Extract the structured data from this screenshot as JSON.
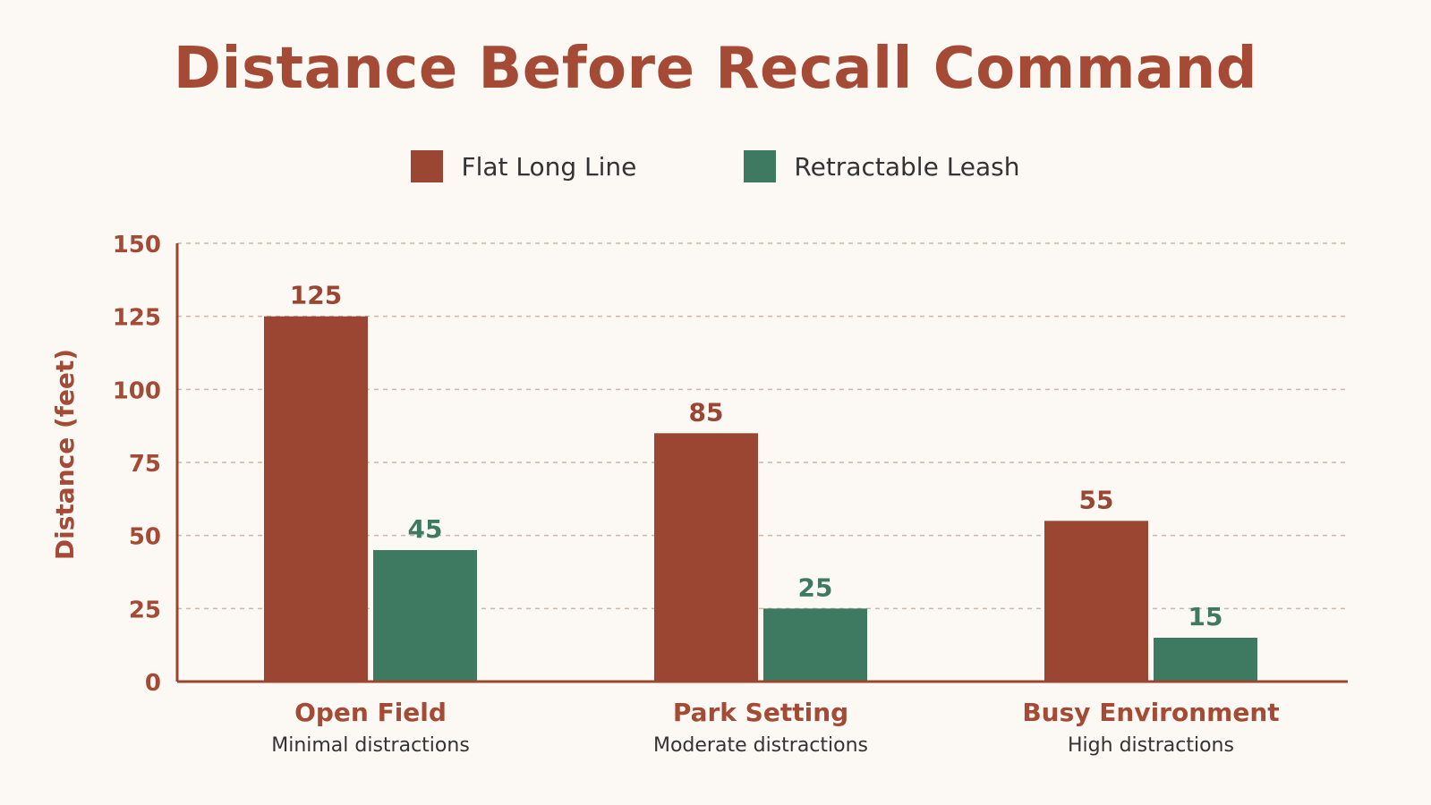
{
  "chart_data": {
    "type": "bar",
    "title": "Distance Before Recall Command",
    "ylabel": "Distance (feet)",
    "xlabel": "",
    "ylim": [
      0,
      150
    ],
    "yticks": [
      0,
      25,
      50,
      75,
      100,
      125,
      150
    ],
    "categories": [
      "Open Field",
      "Park Setting",
      "Busy Environment"
    ],
    "category_subtitles": [
      "Minimal distractions",
      "Moderate distractions",
      "High distractions"
    ],
    "series": [
      {
        "name": "Flat Long Line",
        "values": [
          125,
          85,
          55
        ],
        "color": "#9a4632"
      },
      {
        "name": "Retractable Leash",
        "values": [
          45,
          25,
          15
        ],
        "color": "#3e7a62"
      }
    ],
    "grid": true,
    "legend_position": "top-center"
  }
}
